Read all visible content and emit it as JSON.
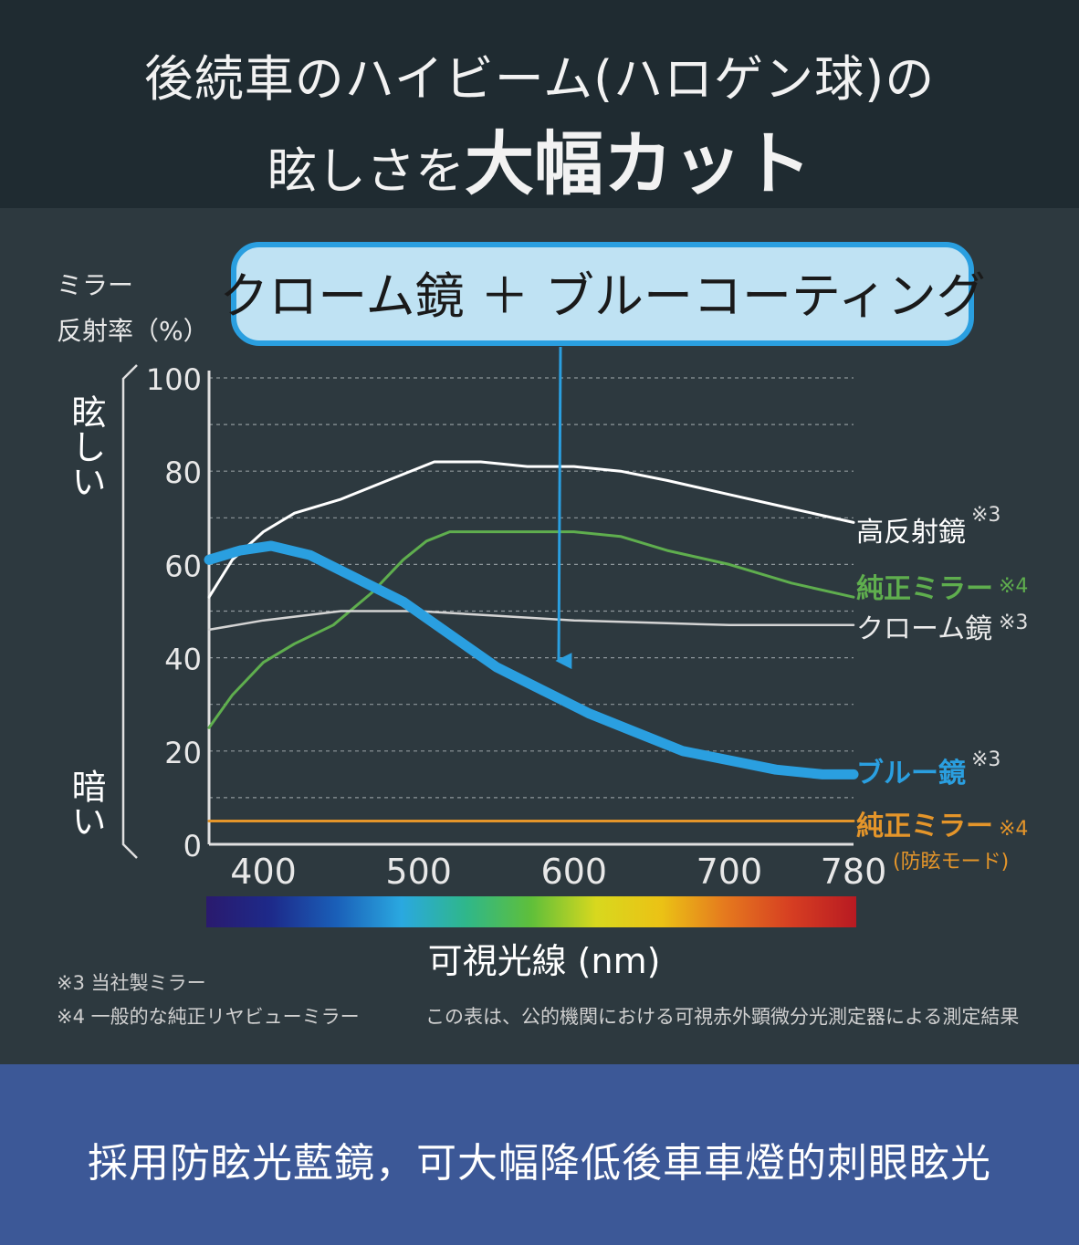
{
  "header": {
    "title_line1": "後続車のハイビーム(ハロゲン球)の",
    "title_line2_prefix": "眩しさを",
    "title_line2_emphasis": "大幅カット"
  },
  "callout": {
    "label": "クローム鏡 ＋ ブルーコーティング"
  },
  "y_axis_label_line1": "ミラー",
  "y_axis_label_line2": "反射率（%）",
  "y_side_top": "眩しい",
  "y_side_bottom": "暗い",
  "notes": {
    "note3": "※3 当社製ミラー",
    "note4": "※4 一般的な純正リヤビューミラー",
    "measurement": "この表は、公的機関における可視赤外顕微分光測定器による測定結果"
  },
  "footer": {
    "caption": "採用防眩光藍鏡，可大幅降低後車車燈的刺眼眩光"
  },
  "chart_data": {
    "type": "line",
    "xlabel": "可視光線 (nm)",
    "ylabel": "ミラー反射率（%）",
    "xlim": [
      365,
      780
    ],
    "ylim": [
      0,
      100
    ],
    "x_ticks": [
      400,
      500,
      600,
      700,
      780
    ],
    "y_ticks": [
      0,
      20,
      40,
      60,
      80,
      100
    ],
    "grid": true,
    "series": [
      {
        "name": "高反射鏡",
        "note": "※3",
        "color": "#ffffff",
        "width": 3,
        "points": [
          [
            365,
            53
          ],
          [
            380,
            61
          ],
          [
            400,
            67
          ],
          [
            420,
            71
          ],
          [
            450,
            74
          ],
          [
            480,
            78
          ],
          [
            510,
            82
          ],
          [
            540,
            82
          ],
          [
            570,
            81
          ],
          [
            600,
            81
          ],
          [
            630,
            80
          ],
          [
            660,
            78
          ],
          [
            700,
            75
          ],
          [
            740,
            72
          ],
          [
            780,
            69
          ]
        ]
      },
      {
        "name": "純正ミラー",
        "note": "※4",
        "color": "#5fae4e",
        "width": 3,
        "points": [
          [
            365,
            25
          ],
          [
            380,
            32
          ],
          [
            400,
            39
          ],
          [
            420,
            43
          ],
          [
            445,
            47
          ],
          [
            470,
            54
          ],
          [
            490,
            61
          ],
          [
            505,
            65
          ],
          [
            520,
            67
          ],
          [
            560,
            67
          ],
          [
            600,
            67
          ],
          [
            630,
            66
          ],
          [
            660,
            63
          ],
          [
            700,
            60
          ],
          [
            740,
            56
          ],
          [
            780,
            53
          ]
        ]
      },
      {
        "name": "クローム鏡",
        "note": "※3",
        "color": "#d4d4d4",
        "width": 2.5,
        "points": [
          [
            365,
            46
          ],
          [
            400,
            48
          ],
          [
            450,
            50
          ],
          [
            500,
            50
          ],
          [
            550,
            49
          ],
          [
            600,
            48
          ],
          [
            650,
            47.5
          ],
          [
            700,
            47
          ],
          [
            780,
            47
          ]
        ]
      },
      {
        "name": "ブルー鏡",
        "note": "※3",
        "color": "#2a9fe0",
        "width": 11,
        "points": [
          [
            365,
            61
          ],
          [
            385,
            63
          ],
          [
            405,
            64
          ],
          [
            430,
            62
          ],
          [
            460,
            57
          ],
          [
            490,
            52
          ],
          [
            520,
            45
          ],
          [
            550,
            38
          ],
          [
            580,
            33
          ],
          [
            610,
            28
          ],
          [
            640,
            24
          ],
          [
            670,
            20
          ],
          [
            700,
            18
          ],
          [
            730,
            16
          ],
          [
            760,
            15
          ],
          [
            780,
            15
          ]
        ]
      },
      {
        "name": "純正ミラー",
        "note": "※4",
        "sublabel": "(防眩モード)",
        "color": "#e4952a",
        "width": 3,
        "points": [
          [
            365,
            5
          ],
          [
            780,
            5
          ]
        ]
      }
    ],
    "spectrum_bar": {
      "colors": [
        "#2a1a6e",
        "#1d2a8a",
        "#1a5fb8",
        "#2aa8e0",
        "#2fb78a",
        "#5fbf3a",
        "#d8d81e",
        "#ebc215",
        "#e5781e",
        "#d63e22",
        "#b81a22"
      ]
    }
  }
}
